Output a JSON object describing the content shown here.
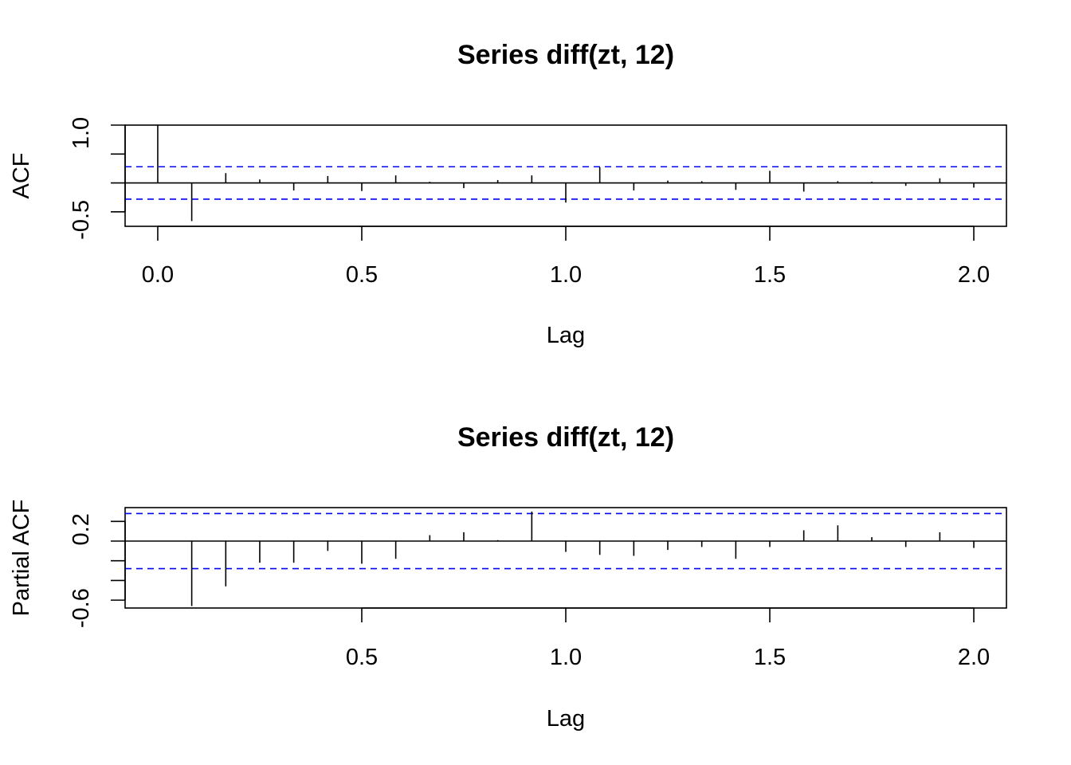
{
  "chart_data": [
    {
      "type": "bar",
      "title": "Series  diff(zt, 12)",
      "xlabel": "Lag",
      "ylabel": "ACF",
      "xlim": [
        -0.08,
        2.08
      ],
      "ylim": [
        -0.75,
        1.0
      ],
      "xticks": [
        0.0,
        0.5,
        1.0,
        1.5,
        2.0
      ],
      "xtick_labels": [
        "0.0",
        "0.5",
        "1.0",
        "1.5",
        "2.0"
      ],
      "yticks": [
        -0.5,
        0.0,
        0.5,
        1.0
      ],
      "ytick_labels": [
        "-0.5",
        "",
        "",
        "1.0"
      ],
      "ci": [
        0.28,
        -0.28
      ],
      "ci_color": "#0000ff",
      "lags": [
        0,
        0.0833,
        0.1667,
        0.25,
        0.3333,
        0.4167,
        0.5,
        0.5833,
        0.6667,
        0.75,
        0.8333,
        0.9167,
        1.0,
        1.0833,
        1.1667,
        1.25,
        1.3333,
        1.4167,
        1.5,
        1.5833,
        1.6667,
        1.75,
        1.8333,
        1.9167,
        2.0
      ],
      "values": [
        1.0,
        -0.66,
        0.17,
        0.06,
        -0.13,
        0.12,
        -0.14,
        0.13,
        0.02,
        -0.09,
        0.05,
        0.13,
        -0.34,
        0.27,
        -0.13,
        0.04,
        0.03,
        -0.12,
        0.21,
        -0.15,
        0.03,
        0.02,
        -0.05,
        0.08,
        -0.08
      ]
    },
    {
      "type": "bar",
      "title": "Series  diff(zt, 12)",
      "xlabel": "Lag",
      "ylabel": "Partial ACF",
      "xlim": [
        -0.08,
        2.08
      ],
      "ylim": [
        -0.68,
        0.34
      ],
      "xticks": [
        0.5,
        1.0,
        1.5,
        2.0
      ],
      "xtick_labels": [
        "0.5",
        "1.0",
        "1.5",
        "2.0"
      ],
      "yticks": [
        -0.6,
        -0.4,
        -0.2,
        0.0,
        0.2
      ],
      "ytick_labels": [
        "-0.6",
        "",
        "",
        "",
        "0.2"
      ],
      "ci": [
        0.28,
        -0.28
      ],
      "ci_color": "#0000ff",
      "lags": [
        0.0833,
        0.1667,
        0.25,
        0.3333,
        0.4167,
        0.5,
        0.5833,
        0.6667,
        0.75,
        0.8333,
        0.9167,
        1.0,
        1.0833,
        1.1667,
        1.25,
        1.3333,
        1.4167,
        1.5,
        1.5833,
        1.6667,
        1.75,
        1.8333,
        1.9167,
        2.0
      ],
      "values": [
        -0.66,
        -0.46,
        -0.22,
        -0.22,
        -0.1,
        -0.23,
        -0.18,
        0.06,
        0.09,
        0.01,
        0.3,
        -0.11,
        -0.14,
        -0.15,
        -0.09,
        -0.06,
        -0.18,
        -0.06,
        0.11,
        0.16,
        0.04,
        -0.06,
        0.09,
        -0.07
      ]
    }
  ]
}
